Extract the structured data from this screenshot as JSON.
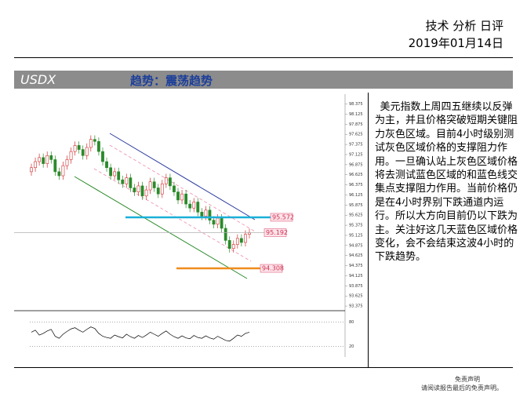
{
  "header": {
    "title": "技术 分析 日评",
    "date": "2019年01月14日"
  },
  "banner": {
    "symbol": "USDX",
    "trend": "趋势：震荡趋势"
  },
  "chart_data": {
    "type": "candlestick",
    "open": [
      96.7,
      96.8,
      96.95,
      97.05,
      96.9,
      97.1,
      97.0,
      96.7,
      96.6,
      96.85,
      97.0,
      97.2,
      97.35,
      97.25,
      97.1,
      97.3,
      97.5,
      97.45,
      97.2,
      96.95,
      96.8,
      96.6,
      96.7,
      96.5,
      96.4,
      96.55,
      96.3,
      96.2,
      96.35,
      96.1,
      96.25,
      96.45,
      96.3,
      96.15,
      96.4,
      96.55,
      96.35,
      96.2,
      96.0,
      96.15,
      95.9,
      95.8,
      95.95,
      95.7,
      95.6,
      95.75,
      95.5,
      95.4,
      95.55,
      95.3,
      95.0,
      94.8,
      94.9,
      95.05,
      94.95,
      95.15
    ],
    "high": [
      96.9,
      97.05,
      97.15,
      97.15,
      97.2,
      97.2,
      97.1,
      96.8,
      96.95,
      97.1,
      97.3,
      97.45,
      97.45,
      97.35,
      97.4,
      97.6,
      97.6,
      97.55,
      97.3,
      97.05,
      96.9,
      96.8,
      96.8,
      96.6,
      96.65,
      96.65,
      96.4,
      96.45,
      96.45,
      96.35,
      96.55,
      96.55,
      96.4,
      96.5,
      96.65,
      96.65,
      96.45,
      96.3,
      96.25,
      96.25,
      96.0,
      96.05,
      96.05,
      95.8,
      95.85,
      95.85,
      95.6,
      95.65,
      95.65,
      95.4,
      95.1,
      95.0,
      95.15,
      95.15,
      95.25,
      95.29
    ],
    "low": [
      96.6,
      96.7,
      96.85,
      96.8,
      96.8,
      96.9,
      96.6,
      96.5,
      96.5,
      96.75,
      96.9,
      97.1,
      97.15,
      97.0,
      97.0,
      97.2,
      97.35,
      97.1,
      96.85,
      96.7,
      96.5,
      96.5,
      96.4,
      96.3,
      96.3,
      96.2,
      96.1,
      96.1,
      96.0,
      96.0,
      96.15,
      96.2,
      96.05,
      96.05,
      96.3,
      96.25,
      96.1,
      95.9,
      95.9,
      95.8,
      95.7,
      95.7,
      95.6,
      95.5,
      95.5,
      95.4,
      95.3,
      95.3,
      95.2,
      94.9,
      94.7,
      94.7,
      94.8,
      94.85,
      94.85,
      95.05
    ],
    "close": [
      96.8,
      96.95,
      97.05,
      96.9,
      97.1,
      97.0,
      96.7,
      96.6,
      96.85,
      97.0,
      97.2,
      97.35,
      97.25,
      97.1,
      97.3,
      97.5,
      97.45,
      97.2,
      96.95,
      96.8,
      96.6,
      96.7,
      96.5,
      96.4,
      96.55,
      96.3,
      96.2,
      96.35,
      96.1,
      96.25,
      96.45,
      96.3,
      96.15,
      96.4,
      96.55,
      96.35,
      96.2,
      96.0,
      96.15,
      95.9,
      95.8,
      95.95,
      95.7,
      95.6,
      95.75,
      95.5,
      95.4,
      95.55,
      95.3,
      95.0,
      94.8,
      94.9,
      95.05,
      94.95,
      95.15,
      95.19
    ],
    "up_color": "#d03030",
    "down_color": "#2a8a2a",
    "ylim": [
      93.28,
      98.62
    ],
    "yticks": [
      98.375,
      98.125,
      97.875,
      97.625,
      97.375,
      97.125,
      96.875,
      96.625,
      96.375,
      96.125,
      95.875,
      95.625,
      95.375,
      95.125,
      94.875,
      94.625,
      94.375,
      94.125,
      93.875,
      93.625,
      93.375
    ],
    "levels": [
      {
        "value": 95.572,
        "color": "#1ab0d8"
      },
      {
        "value": 95.192,
        "color": "#b0b0b0"
      },
      {
        "value": 94.308,
        "color": "#f08c1e"
      }
    ],
    "oscillator": {
      "values": [
        55,
        60,
        48,
        52,
        58,
        62,
        45,
        40,
        50,
        57,
        63,
        66,
        60,
        55,
        62,
        68,
        64,
        52,
        45,
        42,
        40,
        48,
        44,
        41,
        50,
        44,
        40,
        47,
        42,
        48,
        55,
        50,
        45,
        52,
        58,
        50,
        44,
        40,
        46,
        41,
        39,
        47,
        42,
        40,
        46,
        41,
        38,
        45,
        40,
        35,
        33,
        40,
        48,
        45,
        52,
        55
      ],
      "ylim": [
        0,
        100
      ],
      "yticks": [
        80,
        20
      ]
    }
  },
  "commentary": "美元指数上周四五继续以反弹为主，并且价格突破短期关键阻力灰色区域。目前4小时级别测试灰色区域价格的支撑阻力作用。一旦确认站上灰色区域价格将去测试蓝色区域的和蓝色线交集点支撑阻力作用。当前价格仍是在4小时界别下跌通道内运行。所以大方向目前仍以下跌为主。关注好这几天蓝色区域价格变化，会不会结束这波4小时的下跌趋势。",
  "footer": {
    "line1": "免责声明",
    "line2": "请阅读报告最后的免责声明。"
  }
}
